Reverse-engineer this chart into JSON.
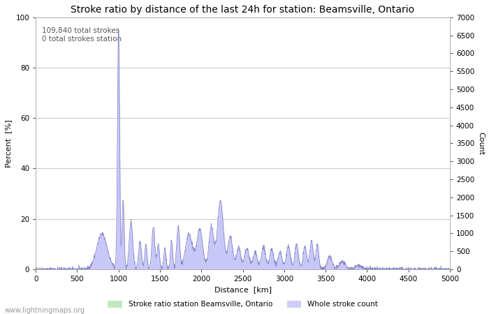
{
  "title": "Stroke ratio by distance of the last 24h for station: Beamsville, Ontario",
  "xlabel": "Distance  [km]",
  "ylabel_left": "Percent  [%]",
  "ylabel_right": "Count",
  "annotation": "109,840 total strokes\n0 total strokes station",
  "xlim": [
    0,
    5000
  ],
  "ylim_left": [
    0,
    100
  ],
  "ylim_right": [
    0,
    7000
  ],
  "yticks_left": [
    0,
    20,
    40,
    60,
    80,
    100
  ],
  "yticks_right": [
    0,
    500,
    1000,
    1500,
    2000,
    2500,
    3000,
    3500,
    4000,
    4500,
    5000,
    5500,
    6000,
    6500,
    7000
  ],
  "xticks": [
    0,
    500,
    1000,
    1500,
    2000,
    2500,
    3000,
    3500,
    4000,
    4500,
    5000
  ],
  "fill_color_stroke_ratio": "#b8e8b8",
  "fill_color_whole": "#c8c8f8",
  "line_color": "#8888cc",
  "background_color": "#ffffff",
  "grid_color": "#c8c8c8",
  "watermark": "www.lightningmaps.org",
  "legend_stroke_ratio": "Stroke ratio station Beamsville, Ontario",
  "legend_whole": "Whole stroke count",
  "title_fontsize": 10,
  "axis_fontsize": 8,
  "tick_fontsize": 7.5
}
